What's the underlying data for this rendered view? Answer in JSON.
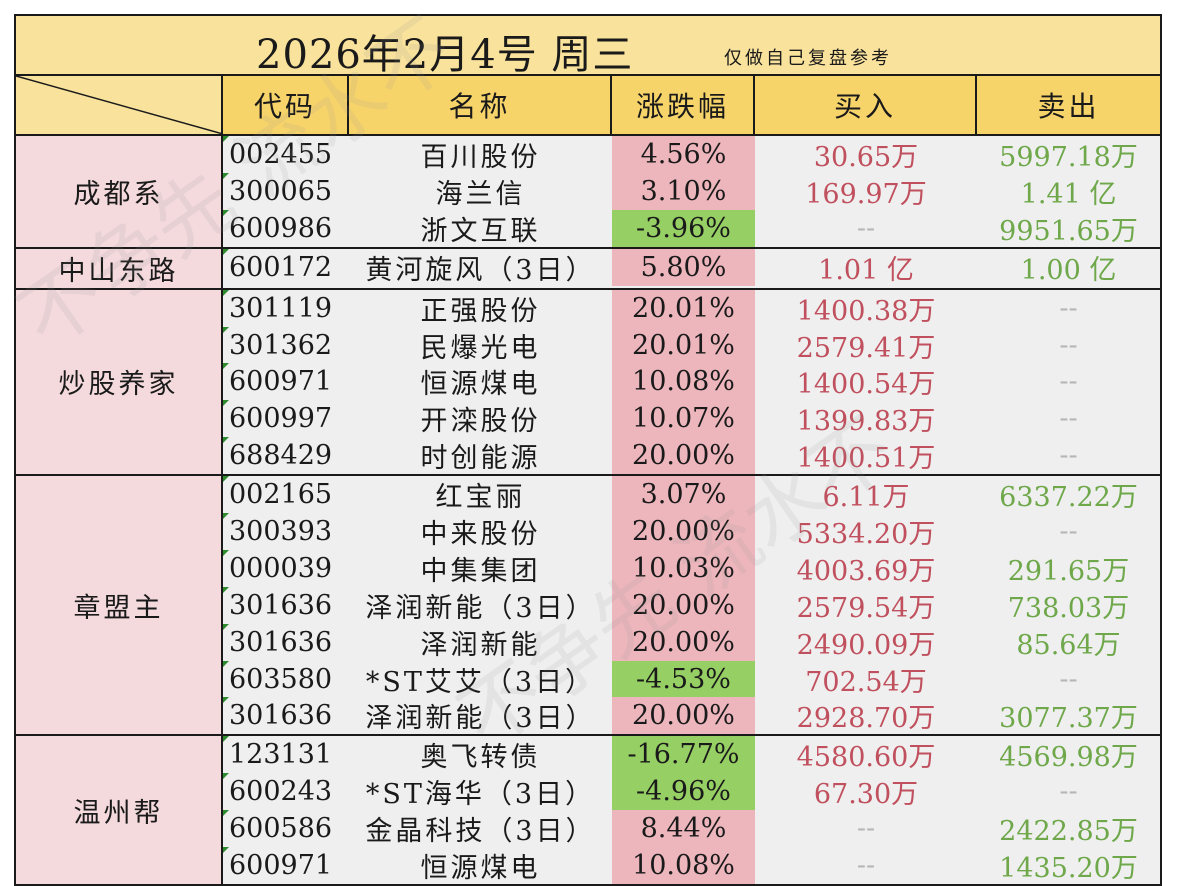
{
  "title": {
    "main": "2026年2月4号  周三",
    "sub": "仅做自己复盘参考"
  },
  "headers": {
    "code": "代码",
    "name": "名称",
    "change": "涨跌幅",
    "buy": "买入",
    "sell": "卖出"
  },
  "groups": [
    {
      "label": "成都系",
      "rows": [
        {
          "code": "002455",
          "name": "百川股份",
          "change": "4.56%",
          "dir": "up",
          "buy": "30.65万",
          "sell": "5997.18万"
        },
        {
          "code": "300065",
          "name": "海兰信",
          "change": "3.10%",
          "dir": "up",
          "buy": "169.97万",
          "sell": "1.41 亿"
        },
        {
          "code": "600986",
          "name": "浙文互联",
          "change": "-3.96%",
          "dir": "down",
          "buy": "--",
          "sell": "9951.65万"
        }
      ]
    },
    {
      "label": "中山东路",
      "rows": [
        {
          "code": "600172",
          "name": "黄河旋风（3日）",
          "change": "5.80%",
          "dir": "up",
          "buy": "1.01 亿",
          "sell": "1.00 亿"
        }
      ]
    },
    {
      "label": "炒股养家",
      "rows": [
        {
          "code": "301119",
          "name": "正强股份",
          "change": "20.01%",
          "dir": "up",
          "buy": "1400.38万",
          "sell": "--"
        },
        {
          "code": "301362",
          "name": "民爆光电",
          "change": "20.01%",
          "dir": "up",
          "buy": "2579.41万",
          "sell": "--"
        },
        {
          "code": "600971",
          "name": "恒源煤电",
          "change": "10.08%",
          "dir": "up",
          "buy": "1400.54万",
          "sell": "--"
        },
        {
          "code": "600997",
          "name": "开滦股份",
          "change": "10.07%",
          "dir": "up",
          "buy": "1399.83万",
          "sell": "--"
        },
        {
          "code": "688429",
          "name": "时创能源",
          "change": "20.00%",
          "dir": "up",
          "buy": "1400.51万",
          "sell": "--"
        }
      ]
    },
    {
      "label": "章盟主",
      "rows": [
        {
          "code": "002165",
          "name": "红宝丽",
          "change": "3.07%",
          "dir": "up",
          "buy": "6.11万",
          "sell": "6337.22万"
        },
        {
          "code": "300393",
          "name": "中来股份",
          "change": "20.00%",
          "dir": "up",
          "buy": "5334.20万",
          "sell": "--"
        },
        {
          "code": "000039",
          "name": "中集集团",
          "change": "10.03%",
          "dir": "up",
          "buy": "4003.69万",
          "sell": "291.65万"
        },
        {
          "code": "301636",
          "name": "泽润新能（3日）",
          "change": "20.00%",
          "dir": "up",
          "buy": "2579.54万",
          "sell": "738.03万"
        },
        {
          "code": "301636",
          "name": "泽润新能",
          "change": "20.00%",
          "dir": "up",
          "buy": "2490.09万",
          "sell": "85.64万"
        },
        {
          "code": "603580",
          "name": "*ST艾艾（3日）",
          "change": "-4.53%",
          "dir": "down",
          "buy": "702.54万",
          "sell": "--"
        },
        {
          "code": "301636",
          "name": "泽润新能（3日）",
          "change": "20.00%",
          "dir": "up",
          "buy": "2928.70万",
          "sell": "3077.37万"
        }
      ]
    },
    {
      "label": "温州帮",
      "rows": [
        {
          "code": "123131",
          "name": "奥飞转债",
          "change": "-16.77%",
          "dir": "down",
          "buy": "4580.60万",
          "sell": "4569.98万"
        },
        {
          "code": "600243",
          "name": "*ST海华（3日）",
          "change": "-4.96%",
          "dir": "down",
          "buy": "67.30万",
          "sell": "--"
        },
        {
          "code": "600586",
          "name": "金晶科技（3日）",
          "change": "8.44%",
          "dir": "up",
          "buy": "--",
          "sell": "2422.85万"
        },
        {
          "code": "600971",
          "name": "恒源煤电",
          "change": "10.08%",
          "dir": "up",
          "buy": "--",
          "sell": "1435.20万"
        }
      ]
    }
  ],
  "watermark": "不争先 流水不"
}
